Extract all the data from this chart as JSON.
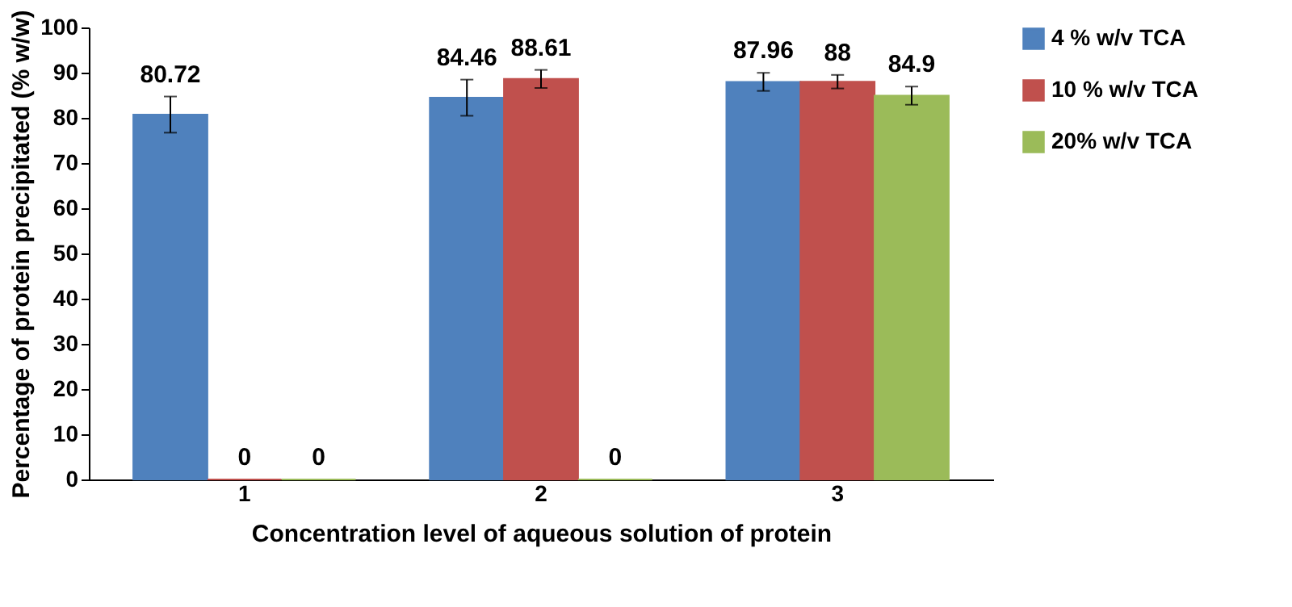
{
  "chart_data": {
    "type": "bar",
    "xlabel": "Concentration level of aqueous solution of protein",
    "ylabel": "Percentage of protein precipitated (% w/w)",
    "categories": [
      "1",
      "2",
      "3"
    ],
    "series": [
      {
        "name": "4 % w/v TCA",
        "color": "#4f81bd",
        "values": [
          80.72,
          84.46,
          87.96
        ],
        "errors": [
          4,
          4,
          2
        ]
      },
      {
        "name": "10 % w/v TCA",
        "color": "#c0504d",
        "values": [
          0,
          88.61,
          88
        ],
        "errors": [
          null,
          2,
          1.5
        ]
      },
      {
        "name": "20% w/v TCA",
        "color": "#9bbb59",
        "values": [
          0,
          0,
          84.9
        ],
        "errors": [
          null,
          null,
          2
        ]
      }
    ],
    "ylim": [
      0,
      100
    ],
    "yticks": [
      0,
      10,
      20,
      30,
      40,
      50,
      60,
      70,
      80,
      90,
      100
    ],
    "grid": false,
    "legend": "right",
    "data_labels": true
  }
}
